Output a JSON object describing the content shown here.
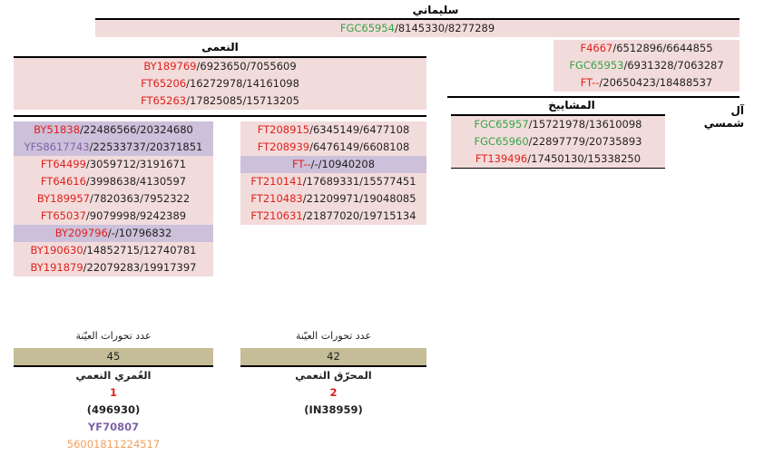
{
  "top": {
    "title": "سليماني",
    "row": {
      "hap": "FGC65954",
      "coords": "/8145330/8277289",
      "color": "green"
    }
  },
  "right_upper": [
    {
      "hap": "F4667",
      "coords": "/6512896/6644855",
      "color": "red"
    },
    {
      "hap": "FGC65953",
      "coords": "/6931328/7063287",
      "color": "green"
    },
    {
      "hap": "FT--",
      "coords": "/20650423/18488537",
      "color": "red"
    }
  ],
  "naimi": {
    "title": "النعمى",
    "rows": [
      {
        "hap": "BY189769",
        "coords": "/6923650/7055609",
        "color": "red"
      },
      {
        "hap": "FT65206",
        "coords": "/16272978/14161098",
        "color": "red"
      },
      {
        "hap": "FT65263",
        "coords": "/17825085/15713205",
        "color": "red"
      }
    ]
  },
  "mashayikh": {
    "title": "المشاييخ",
    "side_label": "آل شمسي",
    "rows": [
      {
        "hap": "FGC65957",
        "coords": "/15721978/13610098",
        "color": "green"
      },
      {
        "hap": "FGC65960",
        "coords": "/22897779/20735893",
        "color": "green"
      },
      {
        "hap": "FT139496",
        "coords": "/17450130/15338250",
        "color": "red"
      }
    ]
  },
  "left_branch": {
    "rows": [
      {
        "hap": "BY51838",
        "coords": "/22486566/20324680",
        "color": "red",
        "bg": "lav"
      },
      {
        "hap": "YFS8617743",
        "coords": "/22533737/20371851",
        "color": "purple",
        "bg": "lav"
      },
      {
        "hap": "FT64499",
        "coords": "/3059712/3191671",
        "color": "red",
        "bg": "pink"
      },
      {
        "hap": "FT64616",
        "coords": "/3998638/4130597",
        "color": "red",
        "bg": "pink"
      },
      {
        "hap": "BY189957",
        "coords": "/7820363/7952322",
        "color": "red",
        "bg": "pink"
      },
      {
        "hap": "FT65037",
        "coords": "/9079998/9242389",
        "color": "red",
        "bg": "pink"
      },
      {
        "hap": "BY209796",
        "coords": "/-/10796832",
        "color": "red",
        "bg": "lav"
      },
      {
        "hap": "BY190630",
        "coords": "/14852715/12740781",
        "color": "red",
        "bg": "pink"
      },
      {
        "hap": "BY191879",
        "coords": "/22079283/19917397",
        "color": "red",
        "bg": "pink"
      }
    ],
    "stats": {
      "label": "عدد تحورات العيّنة",
      "count": "45",
      "name": "العُمري النعمي",
      "num": "1",
      "kit": "(496930)",
      "ysf": "YF70807",
      "id": "56001811224517"
    }
  },
  "right_branch": {
    "rows": [
      {
        "hap": "FT208915",
        "coords": "/6345149/6477108",
        "color": "red",
        "bg": "pink"
      },
      {
        "hap": "FT208939",
        "coords": "/6476149/6608108",
        "color": "red",
        "bg": "pink"
      },
      {
        "hap": "FT--",
        "coords": "/-/10940208",
        "color": "red",
        "bg": "lav"
      },
      {
        "hap": "FT210141",
        "coords": "/17689331/15577451",
        "color": "red",
        "bg": "pink"
      },
      {
        "hap": "FT210483",
        "coords": "/21209971/19048085",
        "color": "red",
        "bg": "pink"
      },
      {
        "hap": "FT210631",
        "coords": "/21877020/19715134",
        "color": "red",
        "bg": "pink"
      }
    ],
    "stats": {
      "label": "عدد تحورات العيّنة",
      "count": "42",
      "name": "المحرّق النعمي",
      "num": "2",
      "kit": "(IN38959)"
    }
  },
  "colors": {
    "red": "#e0201b",
    "green": "#3aa34a",
    "purple": "#7f63a6",
    "pink": "#f2dcdb",
    "lavender": "#ccc0da",
    "tan": "#c4bd97",
    "orange": "#f0a05a"
  }
}
